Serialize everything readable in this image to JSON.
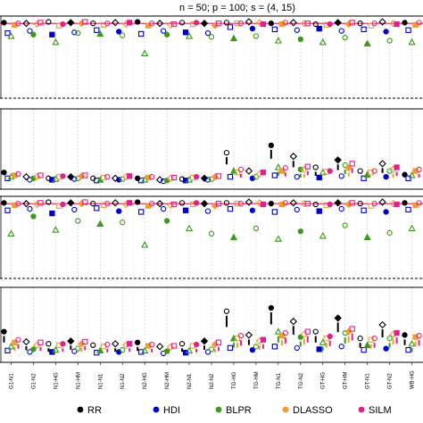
{
  "chart_data": {
    "type": "scatter",
    "title": "n = 50; p = 100; s = (4, 15)",
    "xlabel": "",
    "ylabel": "",
    "categories": [
      "G1-N1",
      "G1-N2",
      "N1-HG",
      "N1-HM",
      "N1-N1",
      "N1-N2",
      "N2-HG",
      "N2-HM",
      "N2-N1",
      "N2-N2",
      "TG-HG",
      "TG-HM",
      "TG-N1",
      "TG-N2",
      "GT-HG",
      "GT-HM",
      "GT-N1",
      "GT-N2",
      "WB-HG"
    ],
    "methods": [
      {
        "name": "RR",
        "color": "#000000"
      },
      {
        "name": "HDI",
        "color": "#0000cc"
      },
      {
        "name": "BLPR",
        "color": "#3a9a1a"
      },
      {
        "name": "DLASSO",
        "color": "#f39c2a"
      },
      {
        "name": "SILM",
        "color": "#e0208c"
      }
    ],
    "panels": [
      {
        "id": "coverage-s4",
        "ylim": [
          0,
          1
        ],
        "reference_line": 0.95,
        "series": [
          {
            "name": "RR",
            "values": [
              0.96,
              0.95,
              0.97,
              0.96,
              0.95,
              0.96,
              0.97,
              0.95,
              0.96,
              0.95,
              0.96,
              0.97,
              0.95,
              0.96,
              0.94,
              0.96,
              0.95,
              0.97,
              0.96
            ]
          },
          {
            "name": "HDI",
            "values": [
              0.82,
              0.85,
              0.8,
              0.83,
              0.86,
              0.84,
              0.81,
              0.85,
              0.83,
              0.82,
              0.9,
              0.88,
              0.87,
              0.86,
              0.88,
              0.85,
              0.87,
              0.84,
              0.86
            ]
          },
          {
            "name": "BLPR",
            "values": [
              0.78,
              0.8,
              0.7,
              0.82,
              0.81,
              0.79,
              0.55,
              0.8,
              0.78,
              0.77,
              0.75,
              0.78,
              0.72,
              0.74,
              0.7,
              0.76,
              0.68,
              0.72,
              0.7
            ]
          },
          {
            "name": "DLASSO",
            "values": [
              0.93,
              0.94,
              0.92,
              0.95,
              0.93,
              0.94,
              0.92,
              0.93,
              0.94,
              0.92,
              0.95,
              0.96,
              0.94,
              0.95,
              0.93,
              0.94,
              0.92,
              0.95,
              0.93
            ]
          },
          {
            "name": "SILM",
            "values": [
              0.95,
              0.96,
              0.94,
              0.97,
              0.95,
              0.96,
              0.95,
              0.94,
              0.96,
              0.95,
              0.95,
              0.94,
              0.96,
              0.95,
              0.94,
              0.96,
              0.95,
              0.94,
              0.96
            ]
          }
        ]
      },
      {
        "id": "length-s4",
        "ylim": [
          0,
          1
        ],
        "series": [
          {
            "name": "RR",
            "values": [
              0.18,
              0.12,
              0.1,
              0.12,
              0.1,
              0.1,
              0.1,
              0.08,
              0.09,
              0.1,
              0.45,
              0.2,
              0.55,
              0.4,
              0.25,
              0.35,
              0.2,
              0.3,
              0.15
            ]
          },
          {
            "name": "HDI",
            "values": [
              0.1,
              0.08,
              0.08,
              0.09,
              0.07,
              0.08,
              0.07,
              0.06,
              0.07,
              0.08,
              0.12,
              0.1,
              0.14,
              0.12,
              0.11,
              0.13,
              0.1,
              0.12,
              0.1
            ]
          },
          {
            "name": "BLPR",
            "values": [
              0.12,
              0.1,
              0.09,
              0.1,
              0.08,
              0.09,
              0.08,
              0.07,
              0.08,
              0.09,
              0.2,
              0.12,
              0.25,
              0.22,
              0.18,
              0.28,
              0.15,
              0.2,
              0.14
            ]
          },
          {
            "name": "DLASSO",
            "values": [
              0.14,
              0.12,
              0.12,
              0.13,
              0.11,
              0.12,
              0.11,
              0.1,
              0.11,
              0.12,
              0.18,
              0.16,
              0.2,
              0.22,
              0.19,
              0.24,
              0.18,
              0.22,
              0.2
            ]
          },
          {
            "name": "SILM",
            "values": [
              0.16,
              0.14,
              0.13,
              0.14,
              0.12,
              0.13,
              0.12,
              0.11,
              0.12,
              0.13,
              0.22,
              0.18,
              0.24,
              0.26,
              0.2,
              0.3,
              0.2,
              0.25,
              0.22
            ]
          }
        ]
      },
      {
        "id": "coverage-s15",
        "ylim": [
          0,
          1
        ],
        "reference_line": 0.95,
        "series": [
          {
            "name": "RR",
            "values": [
              0.96,
              0.95,
              0.97,
              0.96,
              0.95,
              0.96,
              0.97,
              0.95,
              0.96,
              0.95,
              0.96,
              0.97,
              0.95,
              0.96,
              0.94,
              0.96,
              0.95,
              0.97,
              0.96
            ]
          },
          {
            "name": "HDI",
            "values": [
              0.86,
              0.88,
              0.82,
              0.87,
              0.89,
              0.85,
              0.84,
              0.88,
              0.86,
              0.85,
              0.88,
              0.86,
              0.84,
              0.87,
              0.85,
              0.88,
              0.86,
              0.84,
              0.87
            ]
          },
          {
            "name": "BLPR",
            "values": [
              0.55,
              0.78,
              0.6,
              0.72,
              0.68,
              0.7,
              0.4,
              0.72,
              0.62,
              0.55,
              0.5,
              0.62,
              0.48,
              0.58,
              0.52,
              0.66,
              0.5,
              0.56,
              0.62
            ]
          },
          {
            "name": "DLASSO",
            "values": [
              0.93,
              0.94,
              0.92,
              0.95,
              0.93,
              0.94,
              0.92,
              0.93,
              0.94,
              0.92,
              0.95,
              0.96,
              0.94,
              0.95,
              0.93,
              0.94,
              0.92,
              0.95,
              0.93
            ]
          },
          {
            "name": "SILM",
            "values": [
              0.95,
              0.96,
              0.94,
              0.97,
              0.95,
              0.96,
              0.95,
              0.94,
              0.96,
              0.95,
              0.95,
              0.94,
              0.96,
              0.95,
              0.94,
              0.96,
              0.95,
              0.94,
              0.96
            ]
          }
        ]
      },
      {
        "id": "length-s15",
        "ylim": [
          0,
          1
        ],
        "series": [
          {
            "name": "RR",
            "values": [
              0.4,
              0.25,
              0.22,
              0.26,
              0.2,
              0.22,
              0.24,
              0.18,
              0.22,
              0.26,
              0.7,
              0.35,
              0.75,
              0.55,
              0.4,
              0.6,
              0.3,
              0.5,
              0.35
            ]
          },
          {
            "name": "HDI",
            "values": [
              0.12,
              0.1,
              0.1,
              0.11,
              0.09,
              0.1,
              0.1,
              0.08,
              0.09,
              0.1,
              0.16,
              0.13,
              0.18,
              0.16,
              0.14,
              0.18,
              0.13,
              0.15,
              0.13
            ]
          },
          {
            "name": "BLPR",
            "values": [
              0.18,
              0.14,
              0.13,
              0.15,
              0.12,
              0.13,
              0.12,
              0.11,
              0.12,
              0.14,
              0.3,
              0.18,
              0.4,
              0.32,
              0.24,
              0.38,
              0.2,
              0.3,
              0.22
            ]
          },
          {
            "name": "DLASSO",
            "values": [
              0.24,
              0.2,
              0.2,
              0.22,
              0.18,
              0.2,
              0.19,
              0.17,
              0.19,
              0.21,
              0.3,
              0.26,
              0.34,
              0.36,
              0.3,
              0.4,
              0.28,
              0.36,
              0.32
            ]
          },
          {
            "name": "SILM",
            "values": [
              0.28,
              0.24,
              0.22,
              0.25,
              0.21,
              0.22,
              0.21,
              0.19,
              0.21,
              0.24,
              0.34,
              0.28,
              0.38,
              0.4,
              0.33,
              0.44,
              0.3,
              0.38,
              0.34
            ]
          }
        ]
      }
    ],
    "grid": true,
    "legend_position": "bottom"
  }
}
